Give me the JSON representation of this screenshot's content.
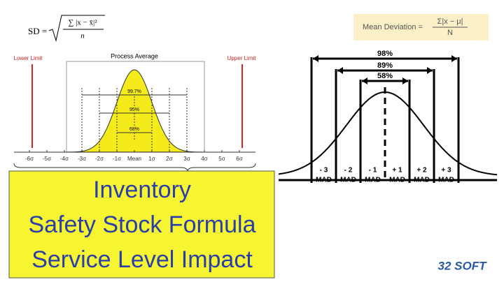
{
  "formula_sd": {
    "lhs": "SD =",
    "numerator": "∑ |x − x̄|²",
    "denominator": "n"
  },
  "formula_mad": {
    "lhs": "Mean Deviation =",
    "numerator": "Σ|x − μ|",
    "denominator": "N"
  },
  "left_diagram": {
    "lower_limit": "Lower Limit",
    "upper_limit": "Upper Limit",
    "center_label": "Process Average",
    "bands": [
      "99.7%",
      "95%",
      "68%"
    ],
    "axis_labels": [
      "-6σ",
      "-5σ",
      "-4σ",
      "-3σ",
      "-2σ",
      "-1σ",
      "Mean",
      "1σ",
      "2σ",
      "3σ",
      "4σ",
      "5σ",
      "6σ"
    ]
  },
  "right_diagram": {
    "bands": [
      "98%",
      "89%",
      "58%"
    ],
    "zones": [
      [
        "- 3",
        "MAD"
      ],
      [
        "- 2",
        "MAD"
      ],
      [
        "- 1",
        "MAD"
      ],
      [
        "+ 1",
        "MAD"
      ],
      [
        "+ 2",
        "MAD"
      ],
      [
        "+ 3",
        "MAD"
      ]
    ]
  },
  "title_lines": [
    "Inventory",
    "Safety Stock Formula",
    "Service Level Impact"
  ],
  "brand": "32 SOFT"
}
